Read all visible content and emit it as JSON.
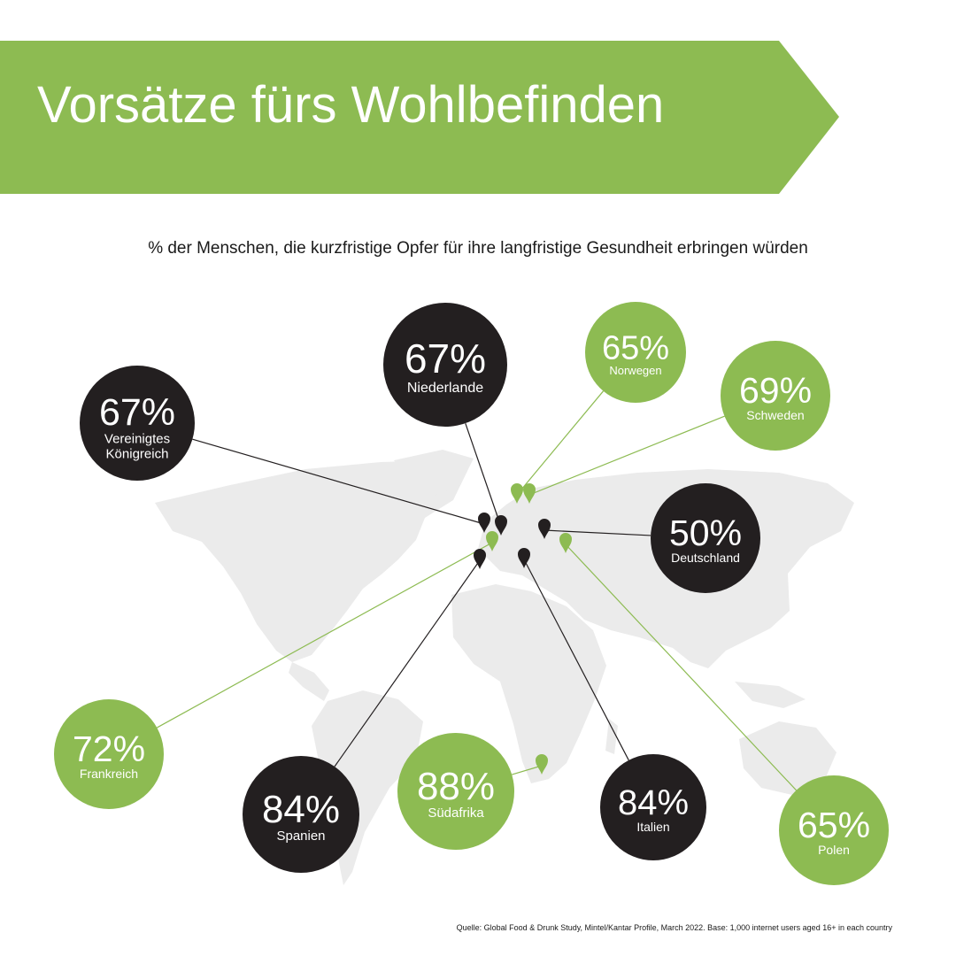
{
  "title": "Vorsätze fürs Wohlbefinden",
  "subtitle": "% der Menschen, die kurzfristige Opfer für ihre langfristige Gesundheit erbringen würden",
  "source": "Quelle: Global Food & Drunk Study, Mintel/Kantar Profile, March 2022. Base: 1,000 internet users aged 16+ in each country",
  "colors": {
    "green": "#8dbb52",
    "dark": "#231f20",
    "map": "#ebebeb",
    "white": "#ffffff"
  },
  "chart_data": {
    "type": "map-bubble",
    "unit": "%",
    "points": [
      {
        "country": "Niederlande",
        "value": 67,
        "value_label": "67%",
        "color": "dark"
      },
      {
        "country": "Norwegen",
        "value": 65,
        "value_label": "65%",
        "color": "green"
      },
      {
        "country": "Schweden",
        "value": 69,
        "value_label": "69%",
        "color": "green"
      },
      {
        "country": "Vereinigtes Königreich",
        "label_lines": [
          "Vereinigtes",
          "Königreich"
        ],
        "value": 67,
        "value_label": "67%",
        "color": "dark"
      },
      {
        "country": "Deutschland",
        "value": 50,
        "value_label": "50%",
        "color": "dark"
      },
      {
        "country": "Frankreich",
        "value": 72,
        "value_label": "72%",
        "color": "green"
      },
      {
        "country": "Spanien",
        "value": 84,
        "value_label": "84%",
        "color": "dark"
      },
      {
        "country": "Südafrika",
        "value": 88,
        "value_label": "88%",
        "color": "green"
      },
      {
        "country": "Italien",
        "value": 84,
        "value_label": "84%",
        "color": "dark"
      },
      {
        "country": "Polen",
        "value": 65,
        "value_label": "65%",
        "color": "green"
      }
    ]
  }
}
